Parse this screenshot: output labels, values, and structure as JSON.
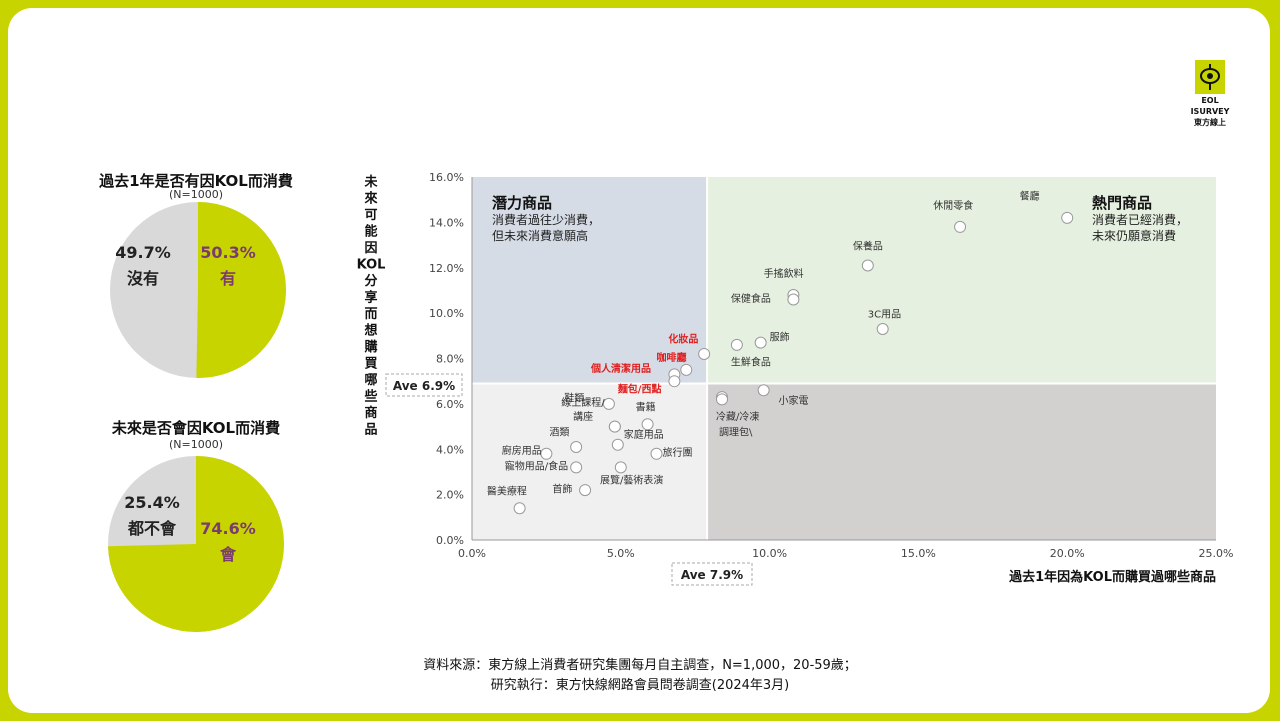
{
  "colors": {
    "accent": "#c8d400",
    "gray": "#d9d9d9",
    "yes_text": "#7a3b6e"
  },
  "pie1": {
    "title": "過去1年是否有因KOL而消費",
    "n": "(N=1000)",
    "no_pct": "49.7%",
    "no_label": "沒有",
    "yes_pct": "50.3%",
    "yes_label": "有",
    "yes_value": 50.3
  },
  "pie2": {
    "title": "未來是否會因KOL而消費",
    "n": "(N=1000)",
    "no_pct": "25.4%",
    "no_label": "都不會",
    "yes_pct": "74.6%",
    "yes_label": "會",
    "yes_value": 74.6
  },
  "logo": {
    "line1": "EOL",
    "line2": "ISURVEY",
    "line3": "東方線上"
  },
  "chart_data": {
    "type": "scatter",
    "xlabel": "過去1年因為KOL而購買過哪些商品",
    "ylabel": "未來可能因KOL分享而想購買哪些商品",
    "xlim": [
      0,
      25
    ],
    "ylim": [
      0,
      16
    ],
    "xticks": [
      "0.0%",
      "5.0%",
      "10.0%",
      "15.0%",
      "20.0%",
      "25.0%"
    ],
    "yticks": [
      "0.0%",
      "2.0%",
      "4.0%",
      "6.0%",
      "8.0%",
      "10.0%",
      "12.0%",
      "14.0%",
      "16.0%"
    ],
    "ave_x": 7.9,
    "ave_y": 6.9,
    "ave_x_label": "Ave  7.9%",
    "ave_y_label": "Ave  6.9%",
    "quadrants": {
      "potential_title": "潛力商品",
      "potential_desc1": "消費者過往少消費，",
      "potential_desc2": "但未來消費意願高",
      "hot_title": "熱門商品",
      "hot_desc1": "消費者已經消費，",
      "hot_desc2": "未來仍願意消費"
    },
    "points": [
      {
        "label": "餐廳",
        "x": 20.0,
        "y": 14.2,
        "lx": -1.6,
        "ly": 0.8
      },
      {
        "label": "休閒零食",
        "x": 16.4,
        "y": 13.8,
        "lx": -0.9,
        "ly": 0.8
      },
      {
        "label": "保養品",
        "x": 13.3,
        "y": 12.1,
        "lx": -0.5,
        "ly": 0.7
      },
      {
        "label": "手搖飲料",
        "x": 10.8,
        "y": 10.8,
        "lx": -1.0,
        "ly": 0.8
      },
      {
        "label": "保健食品",
        "x": 10.8,
        "y": 10.6,
        "lx": -2.1,
        "ly": -0.1
      },
      {
        "label": "3C用品",
        "x": 13.8,
        "y": 9.3,
        "lx": -0.5,
        "ly": 0.5
      },
      {
        "label": "服飾",
        "x": 9.7,
        "y": 8.7,
        "lx": 0.3,
        "ly": 0.1
      },
      {
        "label": "生鮮食品",
        "x": 8.9,
        "y": 8.6,
        "lx": -0.2,
        "ly": -0.9
      },
      {
        "label": "化妝品",
        "x": 7.8,
        "y": 8.2,
        "lx": -1.2,
        "ly": 0.5,
        "color": "#e02020"
      },
      {
        "label": "咖啡廳",
        "x": 7.2,
        "y": 7.5,
        "lx": -1.0,
        "ly": 0.4,
        "color": "#e02020"
      },
      {
        "label": "個人清潔用品",
        "x": 6.8,
        "y": 7.3,
        "lx": -2.8,
        "ly": 0.1,
        "color": "#e02020"
      },
      {
        "label": "麵包/西點",
        "x": 6.8,
        "y": 7.0,
        "lx": -1.9,
        "ly": -0.5,
        "color": "#e02020"
      },
      {
        "label": "小家電",
        "x": 9.8,
        "y": 6.6,
        "lx": 0.5,
        "ly": -0.6
      },
      {
        "label": "冷藏/冷凍",
        "x": 8.4,
        "y": 6.3,
        "lx": -0.2,
        "ly": -1.0
      },
      {
        "label": "調理包\\",
        "x": 8.4,
        "y": 6.2,
        "lx": -0.1,
        "ly": -1.6
      },
      {
        "label": "鞋類",
        "x": 4.6,
        "y": 6.0,
        "lx": -1.5,
        "ly": 0.1
      },
      {
        "label": "書籍",
        "x": 5.9,
        "y": 5.1,
        "lx": -0.4,
        "ly": 0.6
      },
      {
        "label": "線上課程/",
        "x": 4.8,
        "y": 5.0,
        "lx": -1.8,
        "ly": 0.9
      },
      {
        "label": "講座",
        "x": 4.8,
        "y": 5.0,
        "lx": -1.4,
        "ly": 0.3
      },
      {
        "label": "酒類",
        "x": 3.5,
        "y": 4.1,
        "lx": -0.9,
        "ly": 0.5
      },
      {
        "label": "家庭用品",
        "x": 4.9,
        "y": 4.2,
        "lx": 0.2,
        "ly": 0.3
      },
      {
        "label": "旅行團",
        "x": 6.2,
        "y": 3.8,
        "lx": 0.2,
        "ly": -0.1
      },
      {
        "label": "廚房用品",
        "x": 2.5,
        "y": 3.8,
        "lx": -1.5,
        "ly": 0.0
      },
      {
        "label": "寵物用品/食品",
        "x": 3.5,
        "y": 3.2,
        "lx": -2.4,
        "ly": -0.1
      },
      {
        "label": "展覽/藝術表演",
        "x": 5.0,
        "y": 3.2,
        "lx": -0.7,
        "ly": -0.7
      },
      {
        "label": "首飾",
        "x": 3.8,
        "y": 2.2,
        "lx": -1.1,
        "ly": -0.1
      },
      {
        "label": "醫美療程",
        "x": 1.6,
        "y": 1.4,
        "lx": -1.1,
        "ly": 0.6
      }
    ]
  },
  "source": {
    "line1": "資料來源：東方線上消費者研究集團每月自主調查，N=1,000，20-59歲；",
    "line2": "研究執行：東方快線網路會員問卷調查(2024年3月)"
  }
}
